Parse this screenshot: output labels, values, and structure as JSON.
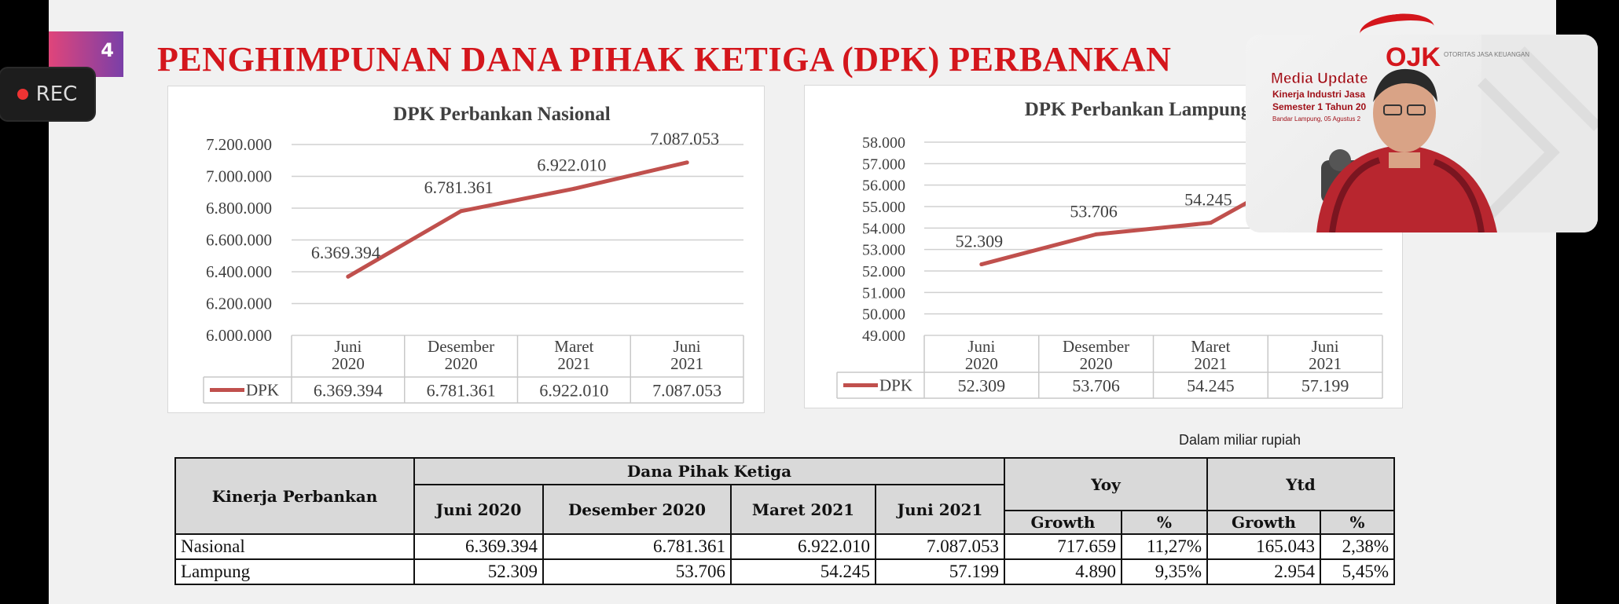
{
  "slide": {
    "page_number": "4",
    "title": "PENGHIMPUNAN DANA PIHAK KETIGA (DPK) PERBANKAN",
    "unit_note": "Dalam miliar rupiah"
  },
  "recorder": {
    "label": "REC"
  },
  "chart_data": [
    {
      "type": "line",
      "title": "DPK Perbankan Nasional",
      "categories": [
        "Juni 2020",
        "Desember 2020",
        "Maret 2021",
        "Juni 2021"
      ],
      "series": [
        {
          "name": "DPK",
          "values": [
            6369394,
            6781361,
            6922010,
            7087053
          ],
          "labels": [
            "6.369.394",
            "6.781.361",
            "6.922.010",
            "7.087.053"
          ]
        }
      ],
      "yticks": [
        "6.000.000",
        "6.200.000",
        "6.400.000",
        "6.600.000",
        "6.800.000",
        "7.000.000",
        "7.200.000"
      ],
      "ylim": [
        6000000,
        7200000
      ],
      "color": "#c0504d",
      "grid": true,
      "data_table": true
    },
    {
      "type": "line",
      "title": "DPK Perbankan Lampung",
      "categories": [
        "Juni 2020",
        "Desember 2020",
        "Maret 2021",
        "Juni 2021"
      ],
      "series": [
        {
          "name": "DPK",
          "values": [
            52309,
            53706,
            54245,
            57199
          ],
          "labels": [
            "52.309",
            "53.706",
            "54.245",
            "57.199"
          ]
        }
      ],
      "yticks": [
        "49.000",
        "50.000",
        "51.000",
        "52.000",
        "53.000",
        "54.000",
        "55.000",
        "56.000",
        "57.000",
        "58.000"
      ],
      "ylim": [
        49000,
        58000
      ],
      "color": "#c0504d",
      "grid": true,
      "data_table": true
    }
  ],
  "table": {
    "h_kinerja": "Kinerja Perbankan",
    "h_dpk": "Dana Pihak Ketiga",
    "h_yoy": "Yoy",
    "h_ytd": "Ytd",
    "periods": [
      "Juni 2020",
      "Desember 2020",
      "Maret 2021",
      "Juni 2021"
    ],
    "h_growth": "Growth",
    "h_pct": "%",
    "rows": [
      {
        "name": "Nasional",
        "values": [
          "6.369.394",
          "6.781.361",
          "6.922.010",
          "7.087.053"
        ],
        "yoy_growth": "717.659",
        "yoy_pct": "11,27%",
        "ytd_growth": "165.043",
        "ytd_pct": "2,38%"
      },
      {
        "name": "Lampung",
        "values": [
          "52.309",
          "53.706",
          "54.245",
          "57.199"
        ],
        "yoy_growth": "4.890",
        "yoy_pct": "9,35%",
        "ytd_growth": "2.954",
        "ytd_pct": "5,45%"
      }
    ]
  },
  "webcam": {
    "logo_text": "OJK",
    "logo_caption": "OTORITAS JASA KEUANGAN",
    "banner_title": "Media Update",
    "banner_line1": "Kinerja Industri Jasa",
    "banner_line2": "Semester 1 Tahun 20",
    "banner_line3": "Bandar Lampung, 05 Agustus 2"
  }
}
